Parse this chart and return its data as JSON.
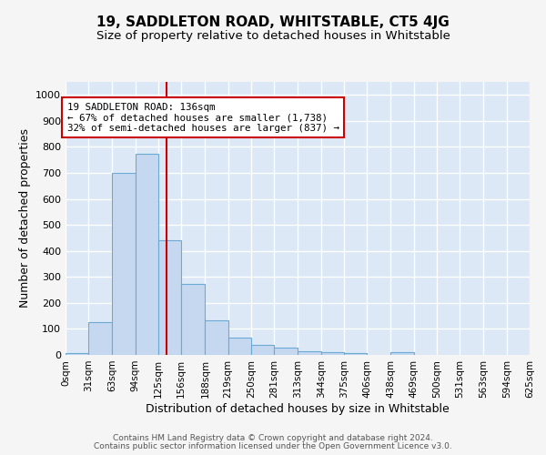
{
  "title": "19, SADDLETON ROAD, WHITSTABLE, CT5 4JG",
  "subtitle": "Size of property relative to detached houses in Whitstable",
  "xlabel": "Distribution of detached houses by size in Whitstable",
  "ylabel": "Number of detached properties",
  "bar_color": "#c5d8f0",
  "bar_edge_color": "#6aaad4",
  "background_color": "#dce8f5",
  "grid_color": "#ffffff",
  "vline_color": "#cc0000",
  "vline_x": 136,
  "annotation_line1": "19 SADDLETON ROAD: 136sqm",
  "annotation_line2": "← 67% of detached houses are smaller (1,738)",
  "annotation_line3": "32% of semi-detached houses are larger (837) →",
  "annotation_box_color": "#ffffff",
  "annotation_box_edge_color": "#cc0000",
  "bins": [
    0,
    31,
    63,
    94,
    125,
    156,
    188,
    219,
    250,
    281,
    313,
    344,
    375,
    406,
    438,
    469,
    500,
    531,
    563,
    594,
    625
  ],
  "counts": [
    8,
    125,
    700,
    775,
    440,
    272,
    133,
    68,
    40,
    27,
    14,
    12,
    8,
    0,
    10,
    0,
    0,
    0,
    0,
    0
  ],
  "ylim": [
    0,
    1050
  ],
  "yticks": [
    0,
    100,
    200,
    300,
    400,
    500,
    600,
    700,
    800,
    900,
    1000
  ],
  "footer_line1": "Contains HM Land Registry data © Crown copyright and database right 2024.",
  "footer_line2": "Contains public sector information licensed under the Open Government Licence v3.0.",
  "fig_bg": "#f5f5f5"
}
